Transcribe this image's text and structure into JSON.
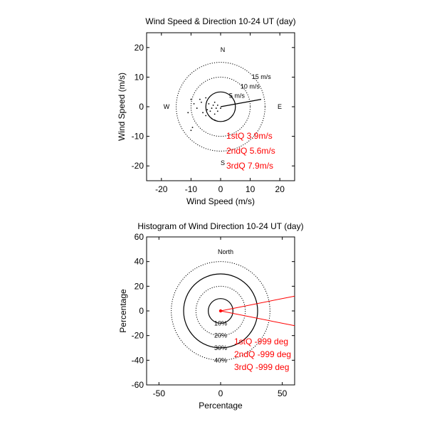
{
  "chart_data": [
    {
      "type": "scatter",
      "title": "Wind Speed & Direction 10-24 UT (day)",
      "xlabel": "Wind Speed (m/s)",
      "ylabel": "Wind Speed (m/s)",
      "xlim": [
        -25,
        25
      ],
      "ylim": [
        -25,
        25
      ],
      "xticks": [
        "-20",
        "-10",
        "0",
        "10",
        "20"
      ],
      "yticks": [
        "20",
        "10",
        "0",
        "-10",
        "-20"
      ],
      "grid": false,
      "compass": {
        "n": "N",
        "e": "E",
        "s": "S",
        "w": "W"
      },
      "rings": [
        {
          "radius": 5,
          "label": "5 m/s",
          "style": "solid"
        },
        {
          "radius": 10,
          "label": "10 m/s",
          "style": "dotted"
        },
        {
          "radius": 15,
          "label": "15 m/s",
          "style": "dotted"
        }
      ],
      "vector": {
        "x": 13.7,
        "y": 2.5
      },
      "points": [
        {
          "x": -2,
          "y": 1.5
        },
        {
          "x": -2.5,
          "y": 0.5
        },
        {
          "x": -3,
          "y": -0.5
        },
        {
          "x": -3.5,
          "y": -1.5
        },
        {
          "x": -2,
          "y": -2.5
        },
        {
          "x": -1.5,
          "y": -0.5
        },
        {
          "x": -1,
          "y": 0.5
        },
        {
          "x": -4,
          "y": 1
        },
        {
          "x": -4.5,
          "y": -1
        },
        {
          "x": -5,
          "y": -3
        },
        {
          "x": -6,
          "y": -2
        },
        {
          "x": -6.5,
          "y": 1.5
        },
        {
          "x": -8,
          "y": -0.5
        },
        {
          "x": -9,
          "y": 1
        },
        {
          "x": -10,
          "y": 2.5
        },
        {
          "x": -11,
          "y": -2
        },
        {
          "x": -9.5,
          "y": -7
        },
        {
          "x": -10,
          "y": -8
        },
        {
          "x": -3,
          "y": -4
        },
        {
          "x": -2,
          "y": -4.5
        },
        {
          "x": -1,
          "y": -1.5
        },
        {
          "x": 0,
          "y": -0.5
        },
        {
          "x": -5,
          "y": 3
        },
        {
          "x": -7,
          "y": 2.5
        }
      ],
      "quartiles": [
        "1stQ 3.9m/s",
        "2ndQ 5.6m/s",
        "3rdQ 7.9m/s"
      ]
    },
    {
      "type": "pie",
      "title": "Histogram of Wind Direction 10-24 UT (day)",
      "xlabel": "Percentage",
      "ylabel": "Percentage",
      "xlim": [
        -60,
        60
      ],
      "ylim": [
        -60,
        60
      ],
      "xticks": [
        "-50",
        "0",
        "50"
      ],
      "yticks": [
        "60",
        "40",
        "20",
        "0",
        "-20",
        "-40",
        "-60"
      ],
      "grid": false,
      "north_label": "North",
      "rings": [
        {
          "radius": 10,
          "label": "10%",
          "style": "solid"
        },
        {
          "radius": 20,
          "label": "20%",
          "style": "dotted"
        },
        {
          "radius": 30,
          "label": "30%",
          "style": "solid"
        },
        {
          "radius": 40,
          "label": "40%",
          "style": "dotted"
        }
      ],
      "wedge_tips": [
        {
          "x": 60,
          "y": 12
        },
        {
          "x": 60,
          "y": -12
        }
      ],
      "quartiles": [
        "1stQ -999 deg",
        "2ndQ -999 deg",
        "3rdQ -999 deg"
      ]
    }
  ]
}
